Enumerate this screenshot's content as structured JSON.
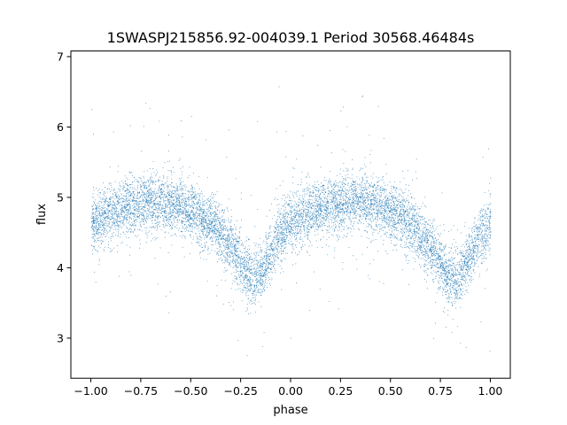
{
  "chart_data": {
    "type": "scatter",
    "title": "1SWASPJ215856.92-004039.1 Period 30568.46484s",
    "xlabel": "phase",
    "ylabel": "flux",
    "xlim": [
      -1.1,
      1.1
    ],
    "ylim": [
      2.43,
      7.08
    ],
    "xticks": [
      -1.0,
      -0.75,
      -0.5,
      -0.25,
      0.0,
      0.25,
      0.5,
      0.75,
      1.0
    ],
    "xtick_labels": [
      "−1.00",
      "−0.75",
      "−0.50",
      "−0.25",
      "0.00",
      "0.25",
      "0.50",
      "0.75",
      "1.00"
    ],
    "yticks": [
      3,
      4,
      5,
      6,
      7
    ],
    "ytick_labels": [
      "3",
      "4",
      "5",
      "6",
      "7"
    ],
    "grid": false,
    "point_color": "#1f77b4",
    "series": [
      {
        "x_range": [
          -1.0,
          1.0
        ],
        "curve_phase": [
          -1.0,
          -0.9,
          -0.8,
          -0.7,
          -0.6,
          -0.5,
          -0.4,
          -0.3,
          -0.25,
          -0.2,
          -0.15,
          -0.1,
          -0.05,
          0.0,
          0.1,
          0.2,
          0.3,
          0.4,
          0.5,
          0.6,
          0.7,
          0.75,
          0.8,
          0.85,
          0.9,
          0.95,
          1.0
        ],
        "curve_flux": [
          4.62,
          4.78,
          4.9,
          4.95,
          4.92,
          4.8,
          4.62,
          4.32,
          4.05,
          3.85,
          3.92,
          4.2,
          4.5,
          4.65,
          4.8,
          4.9,
          4.95,
          4.92,
          4.8,
          4.62,
          4.32,
          4.05,
          3.85,
          3.92,
          4.2,
          4.45,
          4.6
        ],
        "core_scatter": 0.2,
        "outlier_range": [
          2.6,
          6.8
        ]
      }
    ]
  }
}
